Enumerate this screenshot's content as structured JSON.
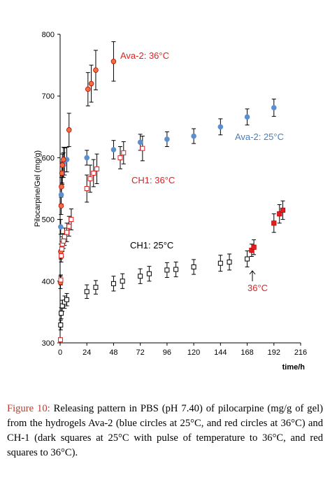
{
  "caption": {
    "label": "Figure 10:",
    "text": " Releasing pattern in PBS (pH 7.40) of pilocarpine (mg/g of gel) from the hydrogels Ava-2 (blue circles at 25°C, and red circles at 36°C) and CH-1 (dark squares at 25°C with pulse of temperature to 36°C, and red squares to 36°C)."
  },
  "chart_data": {
    "type": "scatter",
    "title": "",
    "xlabel": "time/h",
    "ylabel": "Pilocarpine/Gel (mg/g)",
    "xlim": [
      0,
      216
    ],
    "ylim": [
      300,
      800
    ],
    "xticks": [
      "0",
      "24",
      "48",
      "72",
      "96",
      "120",
      "144",
      "168",
      "192",
      "216"
    ],
    "yticks": [
      "300",
      "400",
      "500",
      "600",
      "700",
      "800"
    ],
    "grid": false,
    "legend": "none",
    "series": [
      {
        "name": "Ava-2: 25°C",
        "label_color": "#4a7ebb",
        "marker": "circle",
        "fill": "#5b8fd0",
        "stroke": "#5b8fd0",
        "points": [
          {
            "x": 0.5,
            "y": 488,
            "e": 12
          },
          {
            "x": 1,
            "y": 540,
            "e": 15
          },
          {
            "x": 2,
            "y": 575,
            "e": 18
          },
          {
            "x": 3,
            "y": 588,
            "e": 20
          },
          {
            "x": 4,
            "y": 594,
            "e": 22
          },
          {
            "x": 6,
            "y": 597,
            "e": 20
          },
          {
            "x": 24,
            "y": 600,
            "e": 12
          },
          {
            "x": 48,
            "y": 613,
            "e": 15
          },
          {
            "x": 72,
            "y": 625,
            "e": 13
          },
          {
            "x": 96,
            "y": 630,
            "e": 12
          },
          {
            "x": 120,
            "y": 635,
            "e": 12
          },
          {
            "x": 144,
            "y": 650,
            "e": 13
          },
          {
            "x": 168,
            "y": 666,
            "e": 13
          },
          {
            "x": 192,
            "y": 681,
            "e": 14
          }
        ]
      },
      {
        "name": "Ava-2: 36°C",
        "label_color": "#e02020",
        "marker": "circle",
        "fill": "#f07040",
        "stroke": "#c00000",
        "points": [
          {
            "x": 0.3,
            "y": 398,
            "e": 10
          },
          {
            "x": 0.6,
            "y": 448,
            "e": 12
          },
          {
            "x": 0.9,
            "y": 522,
            "e": 14
          },
          {
            "x": 1.2,
            "y": 553,
            "e": 15
          },
          {
            "x": 1.6,
            "y": 575,
            "e": 16
          },
          {
            "x": 2,
            "y": 588,
            "e": 18
          },
          {
            "x": 3,
            "y": 597,
            "e": 20
          },
          {
            "x": 8,
            "y": 645,
            "e": 27
          },
          {
            "x": 25,
            "y": 711,
            "e": 27
          },
          {
            "x": 28,
            "y": 720,
            "e": 30
          },
          {
            "x": 32,
            "y": 742,
            "e": 32
          },
          {
            "x": 48,
            "y": 756,
            "e": 32
          }
        ]
      },
      {
        "name": "CH1: 36°C",
        "label_color": "#e02020",
        "marker": "square-open",
        "fill": "#ffffff",
        "stroke": "#e02020",
        "points": [
          {
            "x": 0.3,
            "y": 305,
            "e": 0
          },
          {
            "x": 0.6,
            "y": 402,
            "e": 8
          },
          {
            "x": 1,
            "y": 441,
            "e": 10
          },
          {
            "x": 1.5,
            "y": 452,
            "e": 12
          },
          {
            "x": 2,
            "y": 460,
            "e": 12
          },
          {
            "x": 3,
            "y": 465,
            "e": 12
          },
          {
            "x": 4,
            "y": 472,
            "e": 14
          },
          {
            "x": 6,
            "y": 479,
            "e": 15
          },
          {
            "x": 8,
            "y": 489,
            "e": 16
          },
          {
            "x": 10,
            "y": 500,
            "e": 17
          },
          {
            "x": 24,
            "y": 550,
            "e": 22
          },
          {
            "x": 27,
            "y": 566,
            "e": 22
          },
          {
            "x": 30,
            "y": 575,
            "e": 22
          },
          {
            "x": 33,
            "y": 582,
            "e": 24
          },
          {
            "x": 54,
            "y": 600,
            "e": 18
          },
          {
            "x": 57,
            "y": 608,
            "e": 18
          },
          {
            "x": 74,
            "y": 615,
            "e": 20
          }
        ]
      },
      {
        "name": "CH1: 25°C",
        "label_color": "#000000",
        "marker": "square-open",
        "fill": "#ffffff",
        "stroke": "#000000",
        "points": [
          {
            "x": 0.5,
            "y": 329,
            "e": 8
          },
          {
            "x": 1,
            "y": 348,
            "e": 9
          },
          {
            "x": 2,
            "y": 360,
            "e": 9
          },
          {
            "x": 4,
            "y": 366,
            "e": 10
          },
          {
            "x": 6,
            "y": 370,
            "e": 10
          },
          {
            "x": 24,
            "y": 383,
            "e": 11
          },
          {
            "x": 32,
            "y": 390,
            "e": 11
          },
          {
            "x": 48,
            "y": 396,
            "e": 12
          },
          {
            "x": 56,
            "y": 400,
            "e": 12
          },
          {
            "x": 72,
            "y": 408,
            "e": 12
          },
          {
            "x": 80,
            "y": 412,
            "e": 12
          },
          {
            "x": 96,
            "y": 418,
            "e": 12
          },
          {
            "x": 104,
            "y": 419,
            "e": 12
          },
          {
            "x": 120,
            "y": 423,
            "e": 12
          },
          {
            "x": 144,
            "y": 429,
            "e": 13
          },
          {
            "x": 152,
            "y": 431,
            "e": 13
          },
          {
            "x": 168,
            "y": 436,
            "e": 13
          }
        ]
      },
      {
        "name": "36°C",
        "label_color": "#e02020",
        "marker": "square-filled",
        "fill": "#e02020",
        "stroke": "#c00000",
        "points": [
          {
            "x": 172,
            "y": 450,
            "e": 10
          },
          {
            "x": 174,
            "y": 455,
            "e": 12
          },
          {
            "x": 192,
            "y": 494,
            "e": 15
          },
          {
            "x": 197,
            "y": 509,
            "e": 15
          },
          {
            "x": 200,
            "y": 515,
            "e": 15
          }
        ]
      }
    ],
    "annotations": [
      {
        "text": "Ava-2: 36°C",
        "color": "#e02020"
      },
      {
        "text": "Ava-2: 25°C",
        "color": "#4a7ebb"
      },
      {
        "text": "CH1: 36°C",
        "color": "#e02020"
      },
      {
        "text": "CH1: 25°C",
        "color": "#000000"
      },
      {
        "text": "36°C",
        "color": "#e02020"
      }
    ]
  }
}
